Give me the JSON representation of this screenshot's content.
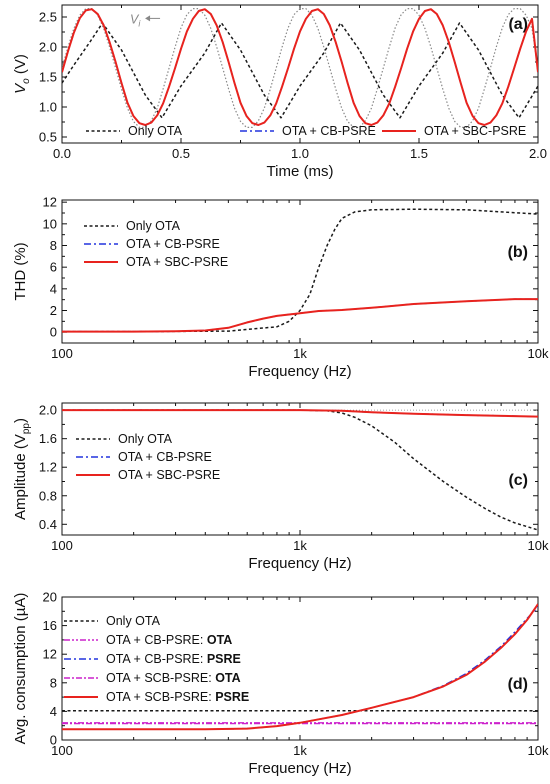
{
  "colors": {
    "black": "#1a1a1a",
    "blue": "#2233dd",
    "red": "#e8231e",
    "magenta": "#cc22cc",
    "gray": "#888888"
  },
  "chart_data": [
    {
      "panel": "(a)",
      "type": "line",
      "xlabel": "Time (ms)",
      "ylabel": "V",
      "ylabel_sub": "o",
      "ylabel_unit": " (V)",
      "xlim": [
        0,
        2.0
      ],
      "ylim": [
        0.4,
        2.7
      ],
      "xticks": [
        0.0,
        0.5,
        1.0,
        1.5,
        2.0
      ],
      "xtick_labels": [
        "0.0",
        "0.5",
        "1.0",
        "1.5",
        "2.0"
      ],
      "yticks": [
        0.5,
        1.0,
        1.5,
        2.0,
        2.5
      ],
      "ytick_labels": [
        "0.5",
        "1.0",
        "1.5",
        "2.0",
        "2.5"
      ],
      "annotation": {
        "text": "V",
        "sub": "i",
        "x": 0.37,
        "y": 2.46
      },
      "legend_position": "bottom",
      "series": [
        {
          "name": "Only OTA",
          "style": "dot-black",
          "x": [
            0.0,
            0.05,
            0.12,
            0.17,
            0.25,
            0.35,
            0.42,
            0.5,
            0.6,
            0.67,
            0.75,
            0.85,
            0.92,
            1.0,
            1.1,
            1.17,
            1.25,
            1.35,
            1.42,
            1.5,
            1.6,
            1.67,
            1.75,
            1.85,
            1.92,
            2.0
          ],
          "y": [
            1.4,
            1.7,
            2.1,
            2.4,
            1.95,
            1.2,
            0.82,
            1.35,
            1.9,
            2.4,
            1.95,
            1.2,
            0.82,
            1.35,
            1.9,
            2.4,
            1.95,
            1.2,
            0.82,
            1.35,
            1.9,
            2.4,
            1.95,
            1.2,
            0.82,
            1.35
          ]
        },
        {
          "name": "OTA + CB-PSRE",
          "style": "dashdot-blue",
          "x": [
            0.0,
            0.025,
            0.05,
            0.075,
            0.1,
            0.125,
            0.15,
            0.175,
            0.2,
            0.225,
            0.25,
            0.275,
            0.3,
            0.325,
            0.35,
            0.375,
            0.4,
            0.425,
            0.45,
            0.475,
            0.5,
            0.525,
            0.55,
            0.575,
            0.6,
            0.625,
            0.65,
            0.675,
            0.7,
            0.725,
            0.75,
            0.775,
            0.8,
            0.825,
            0.85,
            0.875,
            0.9,
            0.925,
            0.95,
            0.975,
            1.0,
            1.025,
            1.05,
            1.075,
            1.1,
            1.125,
            1.15,
            1.175,
            1.2,
            1.225,
            1.25,
            1.275,
            1.3,
            1.325,
            1.35,
            1.375,
            1.4,
            1.425,
            1.45,
            1.475,
            1.5,
            1.525,
            1.55,
            1.575,
            1.6,
            1.625,
            1.65,
            1.675,
            1.7,
            1.725,
            1.75,
            1.775,
            1.8,
            1.825,
            1.85,
            1.875,
            1.9,
            1.925,
            1.95,
            1.975,
            2.0
          ],
          "y": [
            1.58,
            1.93,
            2.24,
            2.48,
            2.61,
            2.63,
            2.55,
            2.36,
            2.08,
            1.75,
            1.4,
            1.07,
            0.85,
            0.73,
            0.7,
            0.74,
            0.86,
            1.06,
            1.34,
            1.65,
            1.97,
            2.26,
            2.47,
            2.6,
            2.63,
            2.55,
            2.36,
            2.08,
            1.75,
            1.4,
            1.07,
            0.85,
            0.73,
            0.7,
            0.74,
            0.86,
            1.06,
            1.34,
            1.65,
            1.97,
            2.26,
            2.47,
            2.6,
            2.63,
            2.55,
            2.36,
            2.08,
            1.75,
            1.4,
            1.07,
            0.85,
            0.73,
            0.7,
            0.74,
            0.86,
            1.06,
            1.34,
            1.65,
            1.97,
            2.26,
            2.47,
            2.6,
            2.63,
            2.55,
            2.36,
            2.08,
            1.75,
            1.4,
            1.07,
            0.85,
            0.73,
            0.7,
            0.74,
            0.86,
            1.06,
            1.34,
            1.65,
            1.97,
            2.26,
            2.47,
            1.58
          ]
        },
        {
          "name": "OTA + SBC-PSRE",
          "style": "solid-red",
          "x": [
            0.0,
            0.025,
            0.05,
            0.075,
            0.1,
            0.125,
            0.15,
            0.175,
            0.2,
            0.225,
            0.25,
            0.275,
            0.3,
            0.325,
            0.35,
            0.375,
            0.4,
            0.425,
            0.45,
            0.475,
            0.5,
            0.525,
            0.55,
            0.575,
            0.6,
            0.625,
            0.65,
            0.675,
            0.7,
            0.725,
            0.75,
            0.775,
            0.8,
            0.825,
            0.85,
            0.875,
            0.9,
            0.925,
            0.95,
            0.975,
            1.0,
            1.025,
            1.05,
            1.075,
            1.1,
            1.125,
            1.15,
            1.175,
            1.2,
            1.225,
            1.25,
            1.275,
            1.3,
            1.325,
            1.35,
            1.375,
            1.4,
            1.425,
            1.45,
            1.475,
            1.5,
            1.525,
            1.55,
            1.575,
            1.6,
            1.625,
            1.65,
            1.675,
            1.7,
            1.725,
            1.75,
            1.775,
            1.8,
            1.825,
            1.85,
            1.875,
            1.9,
            1.925,
            1.95,
            1.975,
            2.0
          ],
          "y": [
            1.58,
            1.93,
            2.24,
            2.48,
            2.61,
            2.63,
            2.55,
            2.36,
            2.08,
            1.75,
            1.4,
            1.07,
            0.85,
            0.73,
            0.7,
            0.74,
            0.86,
            1.06,
            1.34,
            1.65,
            1.97,
            2.26,
            2.47,
            2.6,
            2.63,
            2.55,
            2.36,
            2.08,
            1.75,
            1.4,
            1.07,
            0.85,
            0.73,
            0.7,
            0.74,
            0.86,
            1.06,
            1.34,
            1.65,
            1.97,
            2.26,
            2.47,
            2.6,
            2.63,
            2.55,
            2.36,
            2.08,
            1.75,
            1.4,
            1.07,
            0.85,
            0.73,
            0.7,
            0.74,
            0.86,
            1.06,
            1.34,
            1.65,
            1.97,
            2.26,
            2.47,
            2.6,
            2.63,
            2.55,
            2.36,
            2.08,
            1.75,
            1.4,
            1.07,
            0.85,
            0.73,
            0.7,
            0.74,
            0.86,
            1.06,
            1.34,
            1.65,
            1.97,
            2.26,
            2.47,
            1.58
          ]
        },
        {
          "name": "",
          "style": "dot-gray",
          "x": [
            0.0,
            0.025,
            0.05,
            0.075,
            0.1,
            0.125,
            0.15,
            0.175,
            0.2,
            0.225,
            0.25,
            0.275,
            0.3,
            0.325,
            0.35,
            0.375,
            0.4,
            0.425,
            0.45,
            0.475,
            0.5,
            0.525,
            0.55,
            0.575,
            0.6,
            0.625,
            0.65,
            0.675,
            0.7,
            0.725,
            0.75,
            0.775,
            0.8,
            0.825,
            0.85,
            0.875,
            0.9,
            0.925,
            0.95,
            0.975,
            1.0,
            1.025,
            1.05,
            1.075,
            1.1,
            1.125,
            1.15,
            1.175,
            1.2,
            1.225,
            1.25,
            1.275,
            1.3,
            1.325,
            1.35,
            1.375,
            1.4,
            1.425,
            1.45,
            1.475,
            1.5,
            1.525,
            1.55,
            1.575,
            1.6,
            1.625,
            1.65,
            1.675,
            1.7,
            1.725,
            1.75,
            1.775,
            1.8,
            1.825,
            1.85,
            1.875,
            1.9,
            1.925,
            1.95,
            1.975,
            2.0
          ],
          "y": [
            1.65,
            2.0,
            2.31,
            2.53,
            2.64,
            2.64,
            2.53,
            2.31,
            2.0,
            1.65,
            1.3,
            0.98,
            0.76,
            0.66,
            0.66,
            0.77,
            0.98,
            1.3,
            1.65,
            2.0,
            2.32,
            2.54,
            2.64,
            2.64,
            2.53,
            2.31,
            2.0,
            1.65,
            1.3,
            0.98,
            0.76,
            0.66,
            0.66,
            0.77,
            0.98,
            1.3,
            1.65,
            2.0,
            2.32,
            2.54,
            2.64,
            2.64,
            2.53,
            2.31,
            2.0,
            1.65,
            1.3,
            0.98,
            0.76,
            0.66,
            0.66,
            0.77,
            0.98,
            1.3,
            1.65,
            2.0,
            2.32,
            2.54,
            2.64,
            2.64,
            2.53,
            2.31,
            2.0,
            1.65,
            1.3,
            0.98,
            0.76,
            0.66,
            0.66,
            0.77,
            0.98,
            1.3,
            1.65,
            2.0,
            2.32,
            2.54,
            2.64,
            2.64,
            2.53,
            2.31,
            1.65
          ]
        }
      ]
    },
    {
      "panel": "(b)",
      "type": "line",
      "xscale": "log",
      "xlabel": "Frequency (Hz)",
      "ylabel": "THD (%)",
      "xlim": [
        100,
        10000
      ],
      "ylim": [
        -1,
        12.2
      ],
      "xticks": [
        100,
        1000,
        10000
      ],
      "xtick_labels": [
        "100",
        "1k",
        "10k"
      ],
      "yticks": [
        0,
        2,
        4,
        6,
        8,
        10,
        12
      ],
      "ytick_labels": [
        "0",
        "2",
        "4",
        "6",
        "8",
        "10",
        "12"
      ],
      "legend_position": "top-left",
      "series": [
        {
          "name": "Only OTA",
          "style": "dot-black",
          "x": [
            100,
            200,
            500,
            800,
            900,
            1000,
            1100,
            1200,
            1300,
            1400,
            1500,
            1700,
            2000,
            3000,
            5000,
            10000
          ],
          "y": [
            0.05,
            0.05,
            0.1,
            0.5,
            1.0,
            2.0,
            3.5,
            6.0,
            8.0,
            9.5,
            10.5,
            11.1,
            11.3,
            11.35,
            11.3,
            10.9
          ]
        },
        {
          "name": "OTA + CB-PSRE",
          "style": "dashdot-blue",
          "x": [
            100,
            200,
            300,
            400,
            500,
            600,
            700,
            800,
            1000,
            1200,
            1500,
            2000,
            3000,
            5000,
            8000,
            10000
          ],
          "y": [
            0.05,
            0.05,
            0.08,
            0.15,
            0.4,
            0.9,
            1.25,
            1.5,
            1.75,
            1.95,
            2.05,
            2.25,
            2.6,
            2.85,
            3.05,
            3.05
          ]
        },
        {
          "name": "OTA + SBC-PSRE",
          "style": "solid-red",
          "x": [
            100,
            200,
            300,
            400,
            500,
            600,
            700,
            800,
            1000,
            1200,
            1500,
            2000,
            3000,
            5000,
            8000,
            10000
          ],
          "y": [
            0.05,
            0.05,
            0.08,
            0.15,
            0.4,
            0.9,
            1.25,
            1.5,
            1.75,
            1.95,
            2.05,
            2.25,
            2.6,
            2.85,
            3.05,
            3.05
          ]
        }
      ]
    },
    {
      "panel": "(c)",
      "type": "line",
      "xscale": "log",
      "xlabel": "Frequency (Hz)",
      "ylabel": "Amplitude (V",
      "ylabel_sub": "pp",
      "ylabel_unit": ")",
      "xlim": [
        100,
        10000
      ],
      "ylim": [
        0.25,
        2.1
      ],
      "xticks": [
        100,
        1000,
        10000
      ],
      "xtick_labels": [
        "100",
        "1k",
        "10k"
      ],
      "yticks": [
        0.4,
        0.8,
        1.2,
        1.6,
        2.0
      ],
      "ytick_labels": [
        "0.4",
        "0.8",
        "1.2",
        "1.6",
        "2.0"
      ],
      "legend_position": "center-left",
      "series": [
        {
          "name": "Only OTA",
          "style": "dot-black",
          "x": [
            100,
            500,
            1000,
            1300,
            1500,
            1700,
            2000,
            2500,
            3000,
            4000,
            5000,
            6000,
            7000,
            8000,
            10000
          ],
          "y": [
            2.0,
            2.0,
            2.0,
            1.99,
            1.96,
            1.9,
            1.78,
            1.55,
            1.32,
            1.0,
            0.78,
            0.62,
            0.5,
            0.42,
            0.32
          ]
        },
        {
          "name": "OTA + CB-PSRE",
          "style": "dashdot-blue",
          "x": [
            100,
            1000,
            1500,
            2000,
            3000,
            5000,
            10000
          ],
          "y": [
            2.0,
            2.0,
            1.99,
            1.97,
            1.95,
            1.93,
            1.91
          ]
        },
        {
          "name": "OTA + SBC-PSRE",
          "style": "solid-red",
          "x": [
            100,
            1000,
            1500,
            2000,
            3000,
            5000,
            10000
          ],
          "y": [
            2.0,
            2.0,
            1.99,
            1.97,
            1.95,
            1.93,
            1.91
          ]
        },
        {
          "name": "",
          "style": "thin-gray",
          "x": [
            100,
            10000
          ],
          "y": [
            2.0,
            2.0
          ]
        }
      ]
    },
    {
      "panel": "(d)",
      "type": "line",
      "xscale": "log",
      "xlabel": "Frequency (Hz)",
      "ylabel": "Avg. consumption (µA)",
      "xlim": [
        100,
        10000
      ],
      "ylim": [
        0,
        20
      ],
      "xticks": [
        100,
        1000,
        10000
      ],
      "xtick_labels": [
        "100",
        "1k",
        "10k"
      ],
      "yticks": [
        0,
        4,
        8,
        12,
        16,
        20
      ],
      "ytick_labels": [
        "0",
        "4",
        "8",
        "12",
        "16",
        "20"
      ],
      "legend_position": "top-left",
      "series": [
        {
          "name": "Only OTA",
          "bold_part": "",
          "style": "dot-black",
          "x": [
            100,
            10000
          ],
          "y": [
            4.1,
            4.1
          ]
        },
        {
          "name": "OTA + CB-PSRE: ",
          "bold_part": "OTA",
          "style": "dashdotdot-magenta",
          "x": [
            100,
            10000
          ],
          "y": [
            2.4,
            2.4
          ]
        },
        {
          "name": "OTA + CB-PSRE: ",
          "bold_part": "PSRE",
          "style": "dashdot-blue",
          "x": [
            100,
            400,
            600,
            800,
            1000,
            1200,
            1500,
            2000,
            3000,
            4000,
            5000,
            6000,
            7000,
            8000,
            9000,
            10000
          ],
          "y": [
            1.5,
            1.5,
            1.6,
            1.95,
            2.4,
            2.9,
            3.5,
            4.5,
            6.0,
            7.6,
            9.3,
            11.2,
            13.1,
            15.1,
            17.0,
            18.6
          ]
        },
        {
          "name": "OTA + SCB-PSRE: ",
          "bold_part": "OTA",
          "style": "dashdot-magenta",
          "x": [
            100,
            10000
          ],
          "y": [
            2.3,
            2.3
          ]
        },
        {
          "name": "OTA + SCB-PSRE: ",
          "bold_part": "PSRE",
          "style": "solid-red",
          "x": [
            100,
            400,
            600,
            800,
            1000,
            1200,
            1500,
            2000,
            3000,
            4000,
            5000,
            6000,
            7000,
            8000,
            9000,
            10000
          ],
          "y": [
            1.5,
            1.5,
            1.6,
            1.95,
            2.4,
            2.9,
            3.5,
            4.5,
            6.0,
            7.5,
            9.1,
            11.0,
            12.9,
            14.8,
            16.8,
            19.0
          ]
        }
      ]
    }
  ]
}
